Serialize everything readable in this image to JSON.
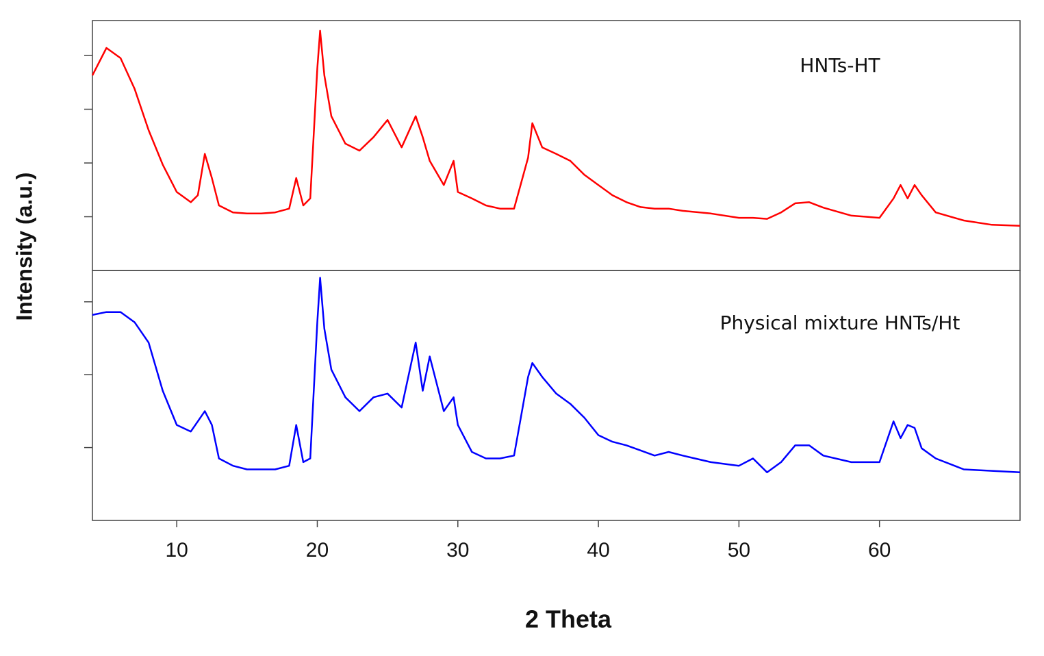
{
  "chart_data": [
    {
      "type": "line",
      "y_label": "Intensity (a.u.)",
      "x": [
        4,
        5,
        6,
        7,
        8,
        9,
        10,
        11,
        11.5,
        12,
        12.5,
        13,
        14,
        15,
        16,
        17,
        18,
        18.5,
        19,
        19.5,
        20,
        20.2,
        20.5,
        21,
        22,
        23,
        24,
        25,
        26,
        27,
        27.5,
        28,
        29,
        29.7,
        30,
        31,
        32,
        33,
        34,
        35,
        35.3,
        36,
        37,
        38,
        39,
        40,
        41,
        42,
        43,
        44,
        45,
        46,
        48,
        50,
        51,
        52,
        53,
        54,
        55,
        56,
        58,
        60,
        61,
        61.5,
        62,
        62.5,
        63,
        64,
        66,
        68,
        70
      ],
      "series": [
        {
          "name": "HNTs-HT",
          "color": "#ff0000",
          "values": [
            3.63,
            4.14,
            3.95,
            3.38,
            2.61,
            1.97,
            1.46,
            1.27,
            1.4,
            2.17,
            1.72,
            1.21,
            1.08,
            1.06,
            1.06,
            1.08,
            1.15,
            1.72,
            1.21,
            1.34,
            3.76,
            4.46,
            3.63,
            2.87,
            2.36,
            2.23,
            2.48,
            2.8,
            2.29,
            2.87,
            2.48,
            2.04,
            1.59,
            2.04,
            1.46,
            1.34,
            1.21,
            1.15,
            1.15,
            2.1,
            2.74,
            2.29,
            2.17,
            2.04,
            1.78,
            1.59,
            1.4,
            1.27,
            1.18,
            1.15,
            1.15,
            1.11,
            1.06,
            0.98,
            0.98,
            0.96,
            1.08,
            1.25,
            1.27,
            1.17,
            1.02,
            0.98,
            1.34,
            1.59,
            1.34,
            1.59,
            1.4,
            1.08,
            0.93,
            0.85,
            0.83
          ]
        }
      ],
      "xlim": [
        4,
        70
      ],
      "ylim": [
        0,
        4.65
      ],
      "yticks": [
        1,
        2,
        3,
        4
      ]
    },
    {
      "type": "line",
      "x_label": "2 Theta",
      "x": [
        4,
        5,
        6,
        7,
        8,
        9,
        10,
        11,
        11.5,
        12,
        12.5,
        13,
        14,
        15,
        16,
        17,
        18,
        18.5,
        19,
        19.5,
        20,
        20.2,
        20.5,
        21,
        22,
        23,
        24,
        25,
        26,
        27,
        27.5,
        28,
        29,
        29.7,
        30,
        31,
        32,
        33,
        34,
        35,
        35.3,
        36,
        37,
        38,
        39,
        40,
        41,
        42,
        43,
        44,
        45,
        46,
        48,
        50,
        51,
        52,
        53,
        54,
        55,
        56,
        58,
        60,
        61,
        61.5,
        62,
        62.5,
        63,
        64,
        66,
        68,
        70
      ],
      "series": [
        {
          "name": "Physical mixture HNTs/Ht",
          "color": "#0000ff",
          "values": [
            2.82,
            2.86,
            2.86,
            2.72,
            2.44,
            1.78,
            1.31,
            1.22,
            1.36,
            1.5,
            1.31,
            0.85,
            0.75,
            0.7,
            0.7,
            0.7,
            0.75,
            1.31,
            0.8,
            0.85,
            2.72,
            3.33,
            2.63,
            2.07,
            1.69,
            1.5,
            1.69,
            1.74,
            1.55,
            2.44,
            1.78,
            2.25,
            1.5,
            1.69,
            1.31,
            0.94,
            0.85,
            0.85,
            0.89,
            1.97,
            2.16,
            1.97,
            1.74,
            1.6,
            1.41,
            1.17,
            1.08,
            1.03,
            0.96,
            0.89,
            0.94,
            0.89,
            0.8,
            0.75,
            0.85,
            0.66,
            0.8,
            1.03,
            1.03,
            0.89,
            0.8,
            0.8,
            1.36,
            1.13,
            1.31,
            1.27,
            0.99,
            0.85,
            0.7,
            0.68,
            0.66
          ]
        }
      ],
      "xlim": [
        4,
        70
      ],
      "xticks": [
        10,
        20,
        30,
        40,
        50,
        60
      ],
      "ylim": [
        0,
        3.43
      ],
      "yticks": [
        1,
        2,
        3
      ]
    }
  ]
}
